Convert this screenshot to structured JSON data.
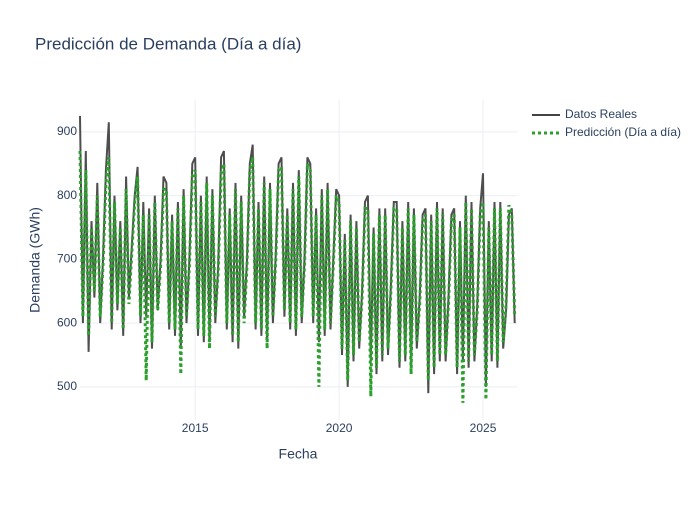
{
  "chart_data": {
    "type": "line",
    "title": "Predicción de Demanda (Día a día)",
    "x_label": "Fecha",
    "y_label": "Demanda (GWh)",
    "x": [
      2011,
      2011.1,
      2011.2,
      2011.3,
      2011.4,
      2011.5,
      2011.6,
      2011.7,
      2011.8,
      2011.9,
      2012,
      2012.1,
      2012.2,
      2012.3,
      2012.4,
      2012.5,
      2012.6,
      2012.7,
      2012.8,
      2012.9,
      2013,
      2013.1,
      2013.2,
      2013.3,
      2013.4,
      2013.5,
      2013.6,
      2013.7,
      2013.8,
      2013.9,
      2014,
      2014.1,
      2014.2,
      2014.3,
      2014.4,
      2014.5,
      2014.6,
      2014.7,
      2014.8,
      2014.9,
      2015,
      2015.1,
      2015.2,
      2015.3,
      2015.4,
      2015.5,
      2015.6,
      2015.7,
      2015.8,
      2015.9,
      2016,
      2016.1,
      2016.2,
      2016.3,
      2016.4,
      2016.5,
      2016.6,
      2016.7,
      2016.8,
      2016.9,
      2017,
      2017.1,
      2017.2,
      2017.3,
      2017.4,
      2017.5,
      2017.6,
      2017.7,
      2017.8,
      2017.9,
      2018,
      2018.1,
      2018.2,
      2018.3,
      2018.4,
      2018.5,
      2018.6,
      2018.7,
      2018.8,
      2018.9,
      2019,
      2019.1,
      2019.2,
      2019.3,
      2019.4,
      2019.5,
      2019.6,
      2019.7,
      2019.8,
      2019.9,
      2020,
      2020.1,
      2020.2,
      2020.3,
      2020.4,
      2020.5,
      2020.6,
      2020.7,
      2020.8,
      2020.9,
      2021,
      2021.1,
      2021.2,
      2021.3,
      2021.4,
      2021.5,
      2021.6,
      2021.7,
      2021.8,
      2021.9,
      2022,
      2022.1,
      2022.2,
      2022.3,
      2022.4,
      2022.5,
      2022.6,
      2022.7,
      2022.8,
      2022.9,
      2023,
      2023.1,
      2023.2,
      2023.3,
      2023.4,
      2023.5,
      2023.6,
      2023.7,
      2023.8,
      2023.9,
      2024,
      2024.1,
      2024.2,
      2024.3,
      2024.4,
      2024.5,
      2024.6,
      2024.7,
      2024.8,
      2024.9,
      2025,
      2025.1,
      2025.2,
      2025.3,
      2025.4,
      2025.5,
      2025.6,
      2025.7,
      2025.8,
      2025.9,
      2026,
      2026.1
    ],
    "series": [
      {
        "name": "Datos Reales",
        "color": "#444444",
        "dash": "solid",
        "values": [
          925,
          600,
          870,
          555,
          760,
          640,
          820,
          600,
          700,
          840,
          915,
          590,
          800,
          620,
          760,
          580,
          830,
          640,
          720,
          800,
          845,
          600,
          790,
          610,
          780,
          560,
          800,
          620,
          700,
          830,
          820,
          590,
          770,
          580,
          790,
          560,
          810,
          600,
          700,
          850,
          860,
          580,
          800,
          570,
          830,
          570,
          810,
          600,
          690,
          860,
          870,
          590,
          780,
          570,
          820,
          560,
          800,
          610,
          700,
          850,
          880,
          590,
          790,
          580,
          830,
          570,
          820,
          600,
          710,
          850,
          860,
          610,
          780,
          590,
          820,
          580,
          840,
          600,
          700,
          860,
          850,
          600,
          780,
          570,
          810,
          580,
          820,
          590,
          700,
          810,
          800,
          550,
          740,
          500,
          770,
          540,
          760,
          560,
          650,
          790,
          800,
          540,
          750,
          520,
          780,
          540,
          780,
          550,
          660,
          790,
          790,
          530,
          760,
          540,
          790,
          530,
          780,
          560,
          640,
          770,
          780,
          490,
          770,
          520,
          790,
          540,
          780,
          540,
          640,
          770,
          780,
          520,
          760,
          540,
          800,
          530,
          790,
          540,
          630,
          780,
          835,
          500,
          760,
          540,
          790,
          530,
          790,
          560,
          620,
          770,
          780,
          600
        ]
      },
      {
        "name": "Predicción (Día a día)",
        "color": "#2ca02c",
        "dash": "dot",
        "values": [
          870,
          610,
          840,
          580,
          750,
          650,
          800,
          610,
          690,
          820,
          860,
          600,
          790,
          630,
          750,
          590,
          810,
          630,
          710,
          790,
          830,
          610,
          770,
          510,
          770,
          570,
          790,
          620,
          690,
          810,
          810,
          600,
          760,
          590,
          780,
          520,
          800,
          610,
          690,
          830,
          840,
          590,
          790,
          580,
          820,
          560,
          800,
          610,
          680,
          835,
          850,
          600,
          770,
          580,
          810,
          570,
          790,
          600,
          690,
          840,
          860,
          600,
          780,
          590,
          820,
          560,
          810,
          610,
          700,
          840,
          845,
          620,
          770,
          600,
          810,
          590,
          830,
          610,
          690,
          850,
          840,
          610,
          770,
          500,
          800,
          590,
          810,
          600,
          690,
          800,
          790,
          560,
          730,
          510,
          760,
          550,
          750,
          570,
          640,
          780,
          780,
          485,
          740,
          530,
          770,
          550,
          770,
          560,
          650,
          780,
          780,
          540,
          750,
          550,
          780,
          520,
          770,
          570,
          630,
          760,
          770,
          510,
          760,
          530,
          780,
          550,
          770,
          550,
          630,
          760,
          770,
          530,
          750,
          475,
          790,
          540,
          780,
          550,
          620,
          770,
          790,
          480,
          750,
          550,
          780,
          540,
          780,
          570,
          630,
          785,
          770,
          610
        ]
      }
    ],
    "xlim": [
      2011,
      2026.18
    ],
    "xticks": [
      2015,
      2020,
      2025
    ],
    "ylim": [
      448,
      950
    ],
    "yticks": [
      500,
      600,
      700,
      800,
      900
    ],
    "grid": true,
    "legend": "right"
  }
}
